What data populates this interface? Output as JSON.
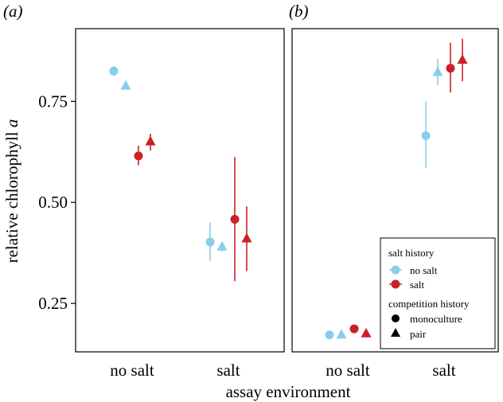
{
  "chart_data": [
    {
      "type": "scatter",
      "panel_label": "(a)",
      "categories": [
        "no salt",
        "salt"
      ],
      "xlabel": "",
      "ylabel": "relative chlorophyll a",
      "ylim": [
        0.13,
        0.93
      ],
      "yticks": [
        0.25,
        0.5,
        0.75
      ],
      "ytick_labels": [
        "0.25",
        "0.50",
        "0.75"
      ],
      "series": [
        {
          "salt_history": "no salt",
          "competition_history": "monoculture",
          "color": "#87CEEB",
          "shape": "circle",
          "points": [
            {
              "category": "no salt",
              "y": 0.825,
              "lo": 0.812,
              "hi": 0.838
            },
            {
              "category": "salt",
              "y": 0.402,
              "lo": 0.355,
              "hi": 0.45
            }
          ]
        },
        {
          "salt_history": "no salt",
          "competition_history": "pair",
          "color": "#87CEEB",
          "shape": "triangle",
          "points": [
            {
              "category": "no salt",
              "y": 0.788,
              "lo": 0.782,
              "hi": 0.794
            },
            {
              "category": "salt",
              "y": 0.39,
              "lo": 0.378,
              "hi": 0.402
            }
          ]
        },
        {
          "salt_history": "salt",
          "competition_history": "monoculture",
          "color": "#CC2027",
          "shape": "circle",
          "points": [
            {
              "category": "no salt",
              "y": 0.615,
              "lo": 0.592,
              "hi": 0.64
            },
            {
              "category": "salt",
              "y": 0.458,
              "lo": 0.305,
              "hi": 0.612
            }
          ]
        },
        {
          "salt_history": "salt",
          "competition_history": "pair",
          "color": "#CC2027",
          "shape": "triangle",
          "points": [
            {
              "category": "no salt",
              "y": 0.65,
              "lo": 0.628,
              "hi": 0.67
            },
            {
              "category": "salt",
              "y": 0.41,
              "lo": 0.33,
              "hi": 0.49
            }
          ]
        }
      ]
    },
    {
      "type": "scatter",
      "panel_label": "(b)",
      "categories": [
        "no salt",
        "salt"
      ],
      "xlabel": "",
      "ylabel": "",
      "ylim": [
        0.13,
        0.93
      ],
      "series": [
        {
          "salt_history": "no salt",
          "competition_history": "monoculture",
          "color": "#87CEEB",
          "shape": "circle",
          "points": [
            {
              "category": "no salt",
              "y": 0.172,
              "lo": 0.168,
              "hi": 0.176
            },
            {
              "category": "salt",
              "y": 0.665,
              "lo": 0.585,
              "hi": 0.75
            }
          ]
        },
        {
          "salt_history": "no salt",
          "competition_history": "pair",
          "color": "#87CEEB",
          "shape": "triangle",
          "points": [
            {
              "category": "no salt",
              "y": 0.172,
              "lo": 0.168,
              "hi": 0.176
            },
            {
              "category": "salt",
              "y": 0.822,
              "lo": 0.79,
              "hi": 0.855
            }
          ]
        },
        {
          "salt_history": "salt",
          "competition_history": "monoculture",
          "color": "#CC2027",
          "shape": "circle",
          "points": [
            {
              "category": "no salt",
              "y": 0.187,
              "lo": 0.183,
              "hi": 0.191
            },
            {
              "category": "salt",
              "y": 0.832,
              "lo": 0.772,
              "hi": 0.895
            }
          ]
        },
        {
          "salt_history": "salt",
          "competition_history": "pair",
          "color": "#CC2027",
          "shape": "triangle",
          "points": [
            {
              "category": "no salt",
              "y": 0.175,
              "lo": 0.171,
              "hi": 0.179
            },
            {
              "category": "salt",
              "y": 0.852,
              "lo": 0.8,
              "hi": 0.905
            }
          ]
        }
      ]
    }
  ],
  "axes": {
    "shared_xlabel": "assay environment",
    "ylabel": "relative chlorophyll a"
  },
  "legend": {
    "placement": "bottom-right of panel (b)",
    "salt_title": "salt history",
    "salt_items": [
      {
        "label": "no salt",
        "color": "#87CEEB"
      },
      {
        "label": "salt",
        "color": "#CC2027"
      }
    ],
    "competition_title": "competition history",
    "competition_items": [
      {
        "label": "monoculture",
        "shape": "circle"
      },
      {
        "label": "pair",
        "shape": "triangle"
      }
    ]
  }
}
